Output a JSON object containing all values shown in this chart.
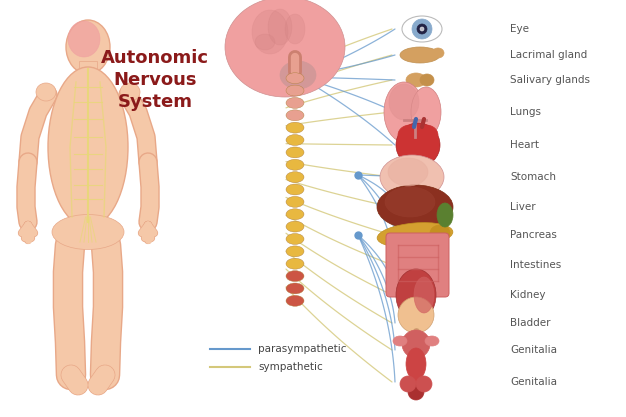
{
  "title": "Autonomic\nNervous\nSystem",
  "title_color": "#8B1A1A",
  "title_fontsize": 13,
  "bg_color": "#FFFFFF",
  "organ_labels": [
    "Eye",
    "Lacrimal gland",
    "Salivary glands",
    "Lungs",
    "Heart",
    "Stomach",
    "Liver",
    "Pancreas",
    "Intestines",
    "Kidney",
    "Bladder",
    "Genitalia",
    "Genitalia"
  ],
  "label_color": "#555555",
  "label_fontsize": 7.5,
  "parasym_color": "#6699CC",
  "sym_color": "#D4C87A",
  "body_fill": "#F5C8A8",
  "body_edge": "#E8A888",
  "nerve_color": "#E8D878",
  "spine_top_color": "#E8A090",
  "spine_mid_color": "#E8B840",
  "spine_bot_color": "#CC5544",
  "brain_color": "#F0A0A0",
  "brain_detail": "#D08080",
  "legend_para_color": "#6699CC",
  "legend_sym_color": "#D4C87A"
}
